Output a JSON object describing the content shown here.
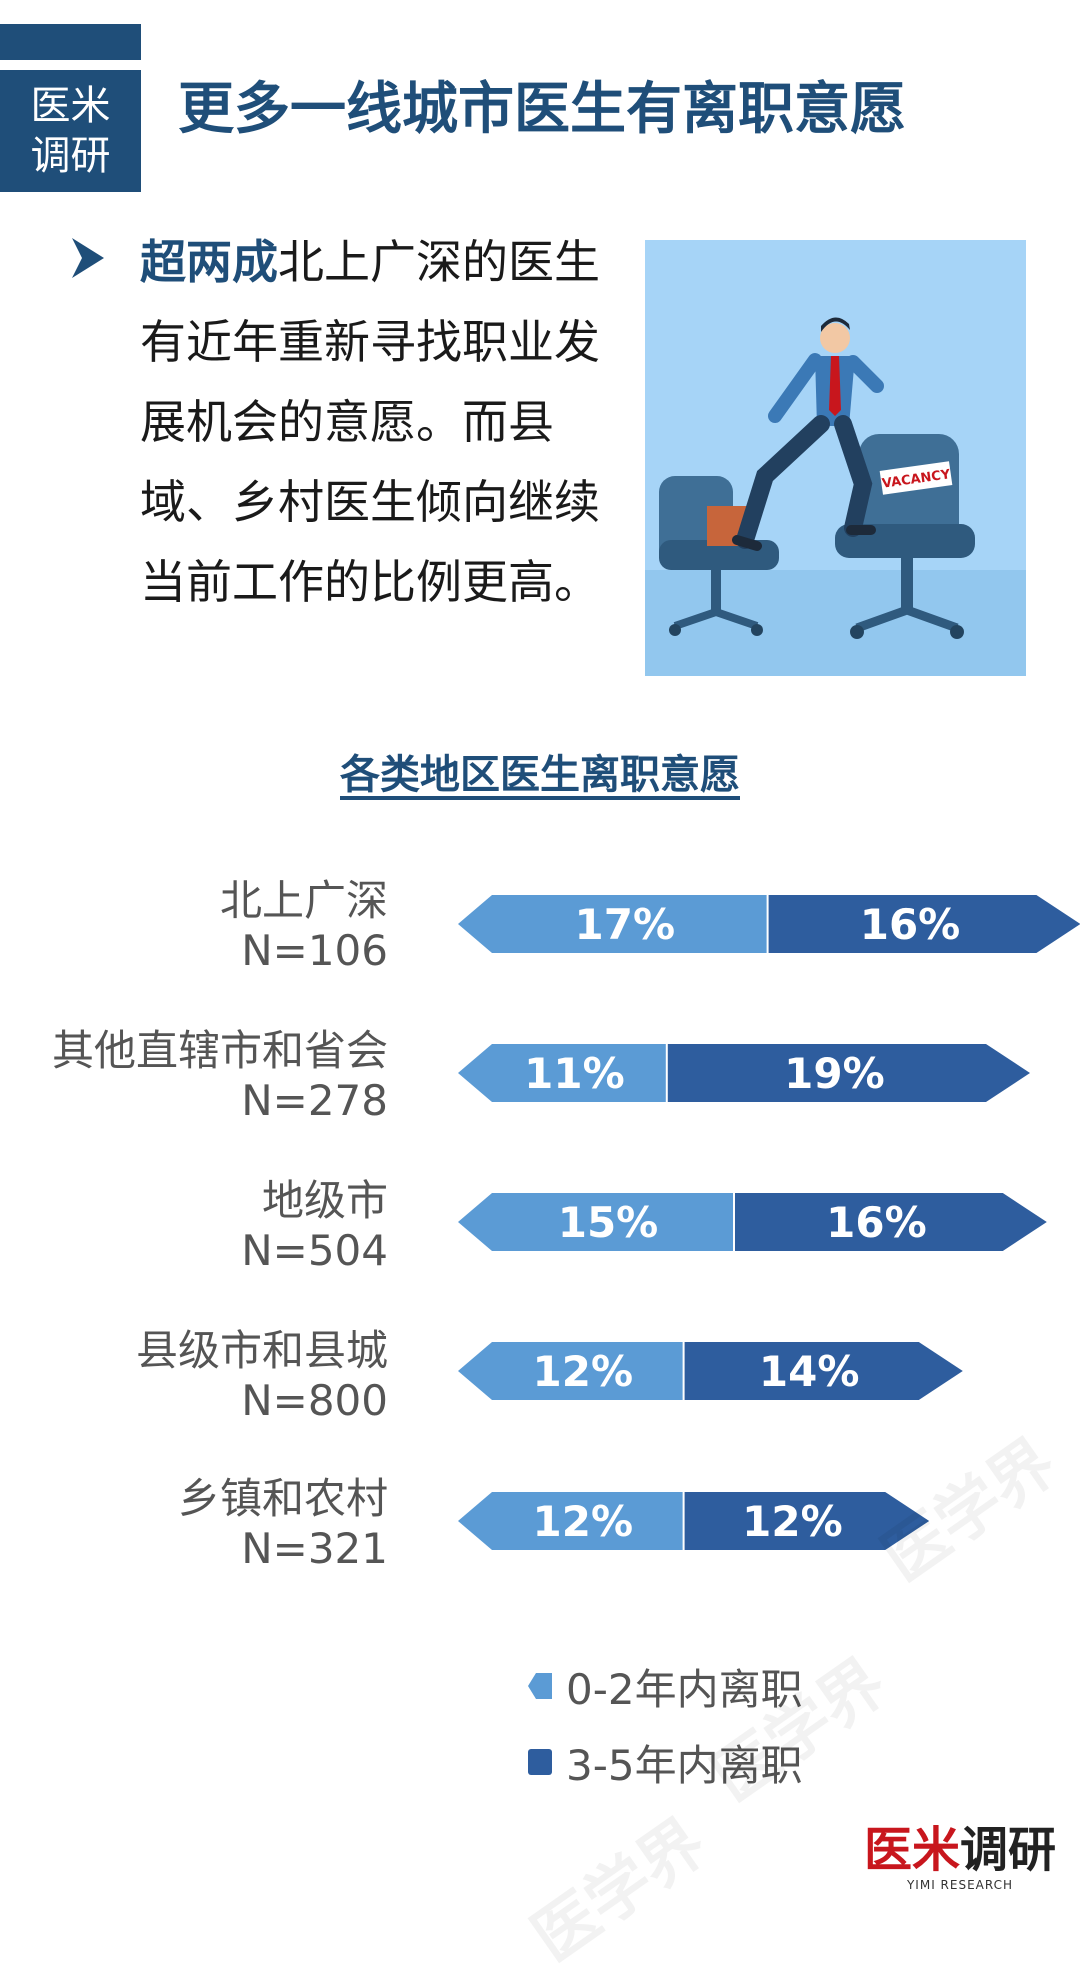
{
  "header": {
    "badge_line1": "医米",
    "badge_line2": "调研",
    "title": "更多一线城市医生有离职意愿"
  },
  "intro": {
    "highlight": "超两成",
    "text": "北上广深的医生有近年重新寻找职业发展机会的意愿。而县域、乡村医生倾向继续当前工作的比例更高。"
  },
  "illustration": {
    "icon": "businessman-stepping-to-vacant-chair",
    "sign_text": "VACANCY"
  },
  "chart_data": {
    "type": "bar",
    "orientation": "horizontal-stacked",
    "title": "各类地区医生离职意愿",
    "categories": [
      {
        "name": "北上广深",
        "n": "N=106"
      },
      {
        "name": "其他直辖市和省会",
        "n": "N=278"
      },
      {
        "name": "地级市",
        "n": "N=504"
      },
      {
        "name": "县级市和县城",
        "n": "N=800"
      },
      {
        "name": "乡镇和农村",
        "n": "N=321"
      }
    ],
    "series": [
      {
        "name": "0-2年内离职",
        "values": [
          17,
          11,
          15,
          12,
          12
        ],
        "labels": [
          "17%",
          "11%",
          "15%",
          "12%",
          "12%"
        ],
        "color": "#5b9bd5"
      },
      {
        "name": "3-5年内离职",
        "values": [
          16,
          19,
          16,
          14,
          12
        ],
        "labels": [
          "16%",
          "19%",
          "16%",
          "14%",
          "12%"
        ],
        "color": "#2e5d9e"
      }
    ],
    "unit": "%",
    "legend_position": "bottom-center",
    "grid": false
  },
  "watermark": "医学界",
  "brand": {
    "name_red": "医米",
    "name_dark": "调研",
    "sub": "YIMI RESEARCH"
  }
}
